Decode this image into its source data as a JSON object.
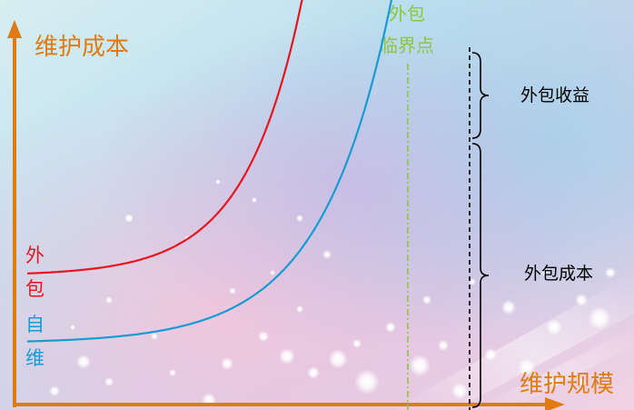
{
  "chart_data": {
    "type": "line",
    "ylabel": "维护成本",
    "xlabel": "维护规模",
    "critical_point_label": [
      "外包",
      "临界点"
    ],
    "series": [
      {
        "name_lines": [
          "外",
          "包"
        ],
        "color": "#e8141e",
        "start_value": 300,
        "end_value": 0,
        "growth_rate": 0.016
      },
      {
        "name_lines": [
          "自",
          "维"
        ],
        "color": "#169bd5",
        "start_value": 375,
        "end_value": 0,
        "growth_rate": 0.013
      }
    ],
    "annotations": {
      "benefit_label": "外包收益",
      "cost_label": "外包成本"
    },
    "colors": {
      "axis": "#e07b12",
      "critical_line": "#8dc63f",
      "annotation_text": "#000000",
      "brace": "#000000"
    }
  }
}
